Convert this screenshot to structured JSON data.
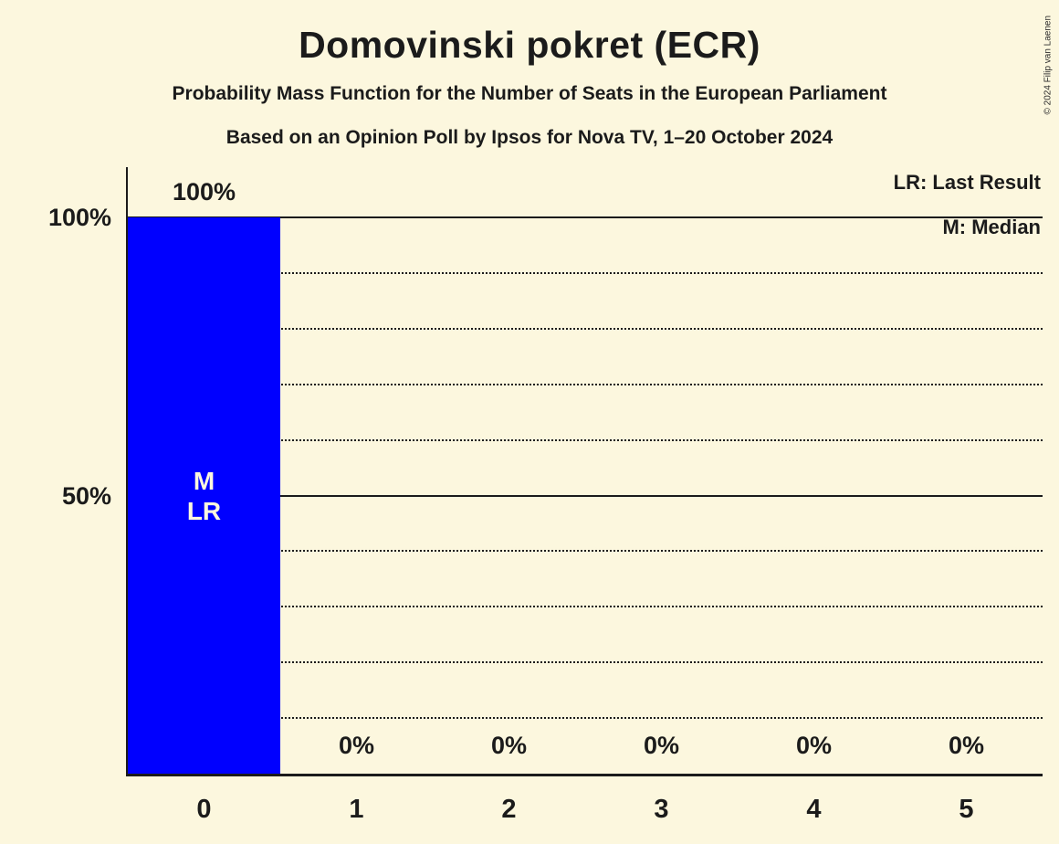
{
  "title": "Domovinski pokret (ECR)",
  "subtitle1": "Probability Mass Function for the Number of Seats in the European Parliament",
  "subtitle2": "Based on an Opinion Poll by Ipsos for Nova TV, 1–20 October 2024",
  "copyright": "© 2024 Filip van Laenen",
  "legend": {
    "lr": "LR: Last Result",
    "m": "M: Median"
  },
  "colors": {
    "background": "#FCF7DE",
    "bar": "#0000FF",
    "text": "#1B1B1B",
    "line": "#1B1B1B",
    "bar_annotation_text": "#FCF7DE"
  },
  "chart_data": {
    "type": "bar",
    "title": "Domovinski pokret (ECR)",
    "categories": [
      "0",
      "1",
      "2",
      "3",
      "4",
      "5"
    ],
    "values": [
      100,
      0,
      0,
      0,
      0,
      0
    ],
    "value_labels": [
      "100%",
      "0%",
      "0%",
      "0%",
      "0%",
      "0%"
    ],
    "bar_annotations": [
      {
        "category_index": 0,
        "lines": [
          "M",
          "LR"
        ],
        "meaning": [
          "Median",
          "Last Result"
        ]
      }
    ],
    "y_axis": {
      "range": [
        0,
        100
      ],
      "ticks": [
        {
          "value": 100,
          "label": "100%"
        },
        {
          "value": 50,
          "label": "50%"
        }
      ]
    },
    "gridlines": {
      "solid_percent": [
        100,
        50
      ],
      "dotted_percent": [
        90,
        80,
        70,
        60,
        40,
        30,
        20,
        10
      ]
    },
    "legend_position": "top-right",
    "bar_color": "#0000FF"
  }
}
